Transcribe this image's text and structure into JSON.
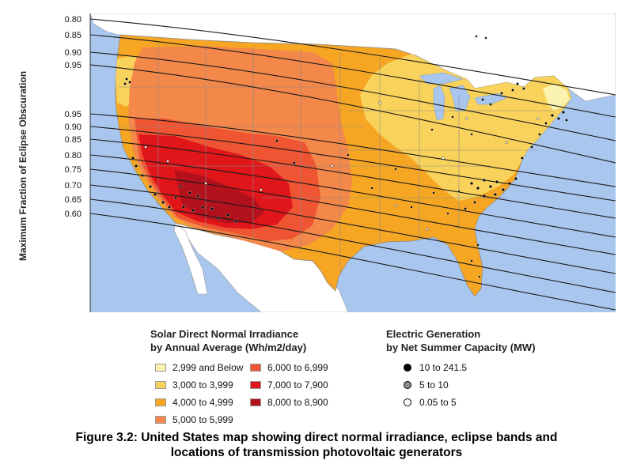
{
  "figure": {
    "y_axis_label": "Maximum Fraction of Eclipse Obscuration",
    "top_ticks": [
      "0.80",
      "0.85",
      "0.90",
      "0.95"
    ],
    "lower_ticks": [
      "0.95",
      "0.90",
      "0.85",
      "0.80",
      "0.75",
      "0.70",
      "0.65",
      "0.60"
    ]
  },
  "irradiance_legend": {
    "title_line1": "Solar Direct Normal Irradiance",
    "title_line2": "by Annual Average (Wh/m2/day)",
    "items": [
      {
        "label": "2,999 and Below",
        "color": "#fbf3b0"
      },
      {
        "label": "3,000 to 3,999",
        "color": "#f9d25b"
      },
      {
        "label": "4,000 to 4,999",
        "color": "#f6a623"
      },
      {
        "label": "5,000 to 5,999",
        "color": "#f4874a"
      },
      {
        "label": "6,000 to 6,999",
        "color": "#ef5533"
      },
      {
        "label": "7,000 to 7,900",
        "color": "#e0161b"
      },
      {
        "label": "8,000 to 8,900",
        "color": "#b3121d"
      }
    ]
  },
  "generation_legend": {
    "title_line1": "Electric Generation",
    "title_line2": "by Net Summer Capacity (MW)",
    "items": [
      {
        "label": "10 to 241.5",
        "color": "#000000"
      },
      {
        "label": "5 to 10",
        "color": "#8a8a8a"
      },
      {
        "label": "0.05 to 5",
        "color": "#ffffff"
      }
    ]
  },
  "caption": {
    "line1": "Figure 3.2: United States map showing direct normal irradiance, eclipse bands and",
    "line2": "locations of transmission photovoltaic generators"
  },
  "colors": {
    "water": "#a9c7ee",
    "land_outside": "#ffffff"
  }
}
